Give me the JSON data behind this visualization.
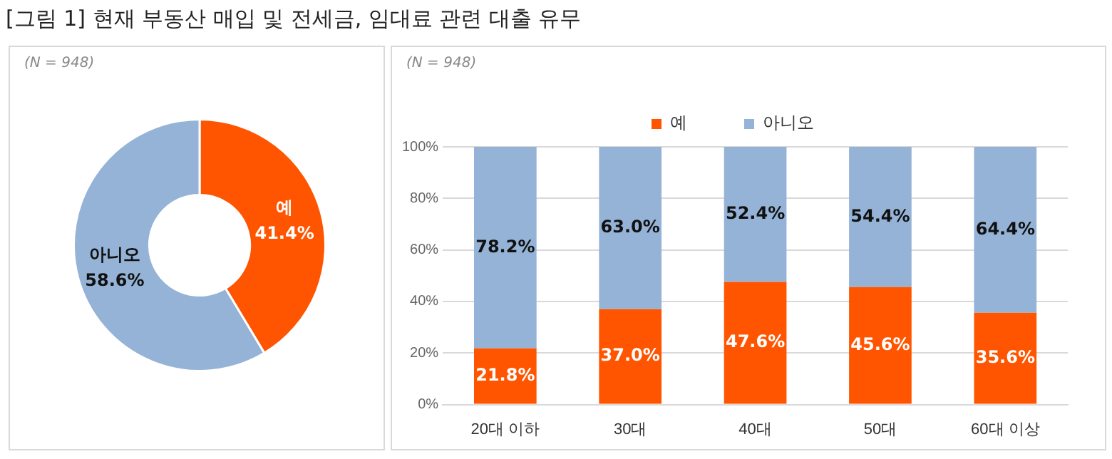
{
  "chart_data": [
    {
      "type": "donut",
      "title": "[그림 1] 현재 부동산 매입 및 전세금, 임대료 관련 대출 유무",
      "annotations": [
        "(N = 948)"
      ],
      "categories": [
        "예",
        "아니오"
      ],
      "values": [
        41.4,
        58.6
      ],
      "colors": [
        "#ff5500",
        "#95b3d7"
      ],
      "value_labels": [
        "41.4%",
        "58.6%"
      ]
    },
    {
      "type": "bar",
      "annotations": [
        "(N = 948)"
      ],
      "categories": [
        "20대 이하",
        "30대",
        "40대",
        "50대",
        "60대 이상"
      ],
      "stacked": true,
      "series": [
        {
          "name": "예",
          "color": "#ff5500",
          "values": [
            21.8,
            37.0,
            47.6,
            45.6,
            35.6
          ],
          "value_labels": [
            "21.8%",
            "37.0%",
            "47.6%",
            "45.6%",
            "35.6%"
          ]
        },
        {
          "name": "아니오",
          "color": "#95b3d7",
          "values": [
            78.2,
            63.0,
            52.4,
            54.4,
            64.4
          ],
          "value_labels": [
            "78.2%",
            "63.0%",
            "52.4%",
            "54.4%",
            "64.4%"
          ]
        }
      ],
      "ylim": [
        0,
        100
      ],
      "yticks": [
        {
          "value": 0,
          "label": "0%"
        },
        {
          "value": 20,
          "label": "20%"
        },
        {
          "value": 40,
          "label": "40%"
        },
        {
          "value": 60,
          "label": "60%"
        },
        {
          "value": 80,
          "label": "80%"
        },
        {
          "value": 100,
          "label": "100%"
        }
      ],
      "grid": "y",
      "legend": "top"
    }
  ]
}
